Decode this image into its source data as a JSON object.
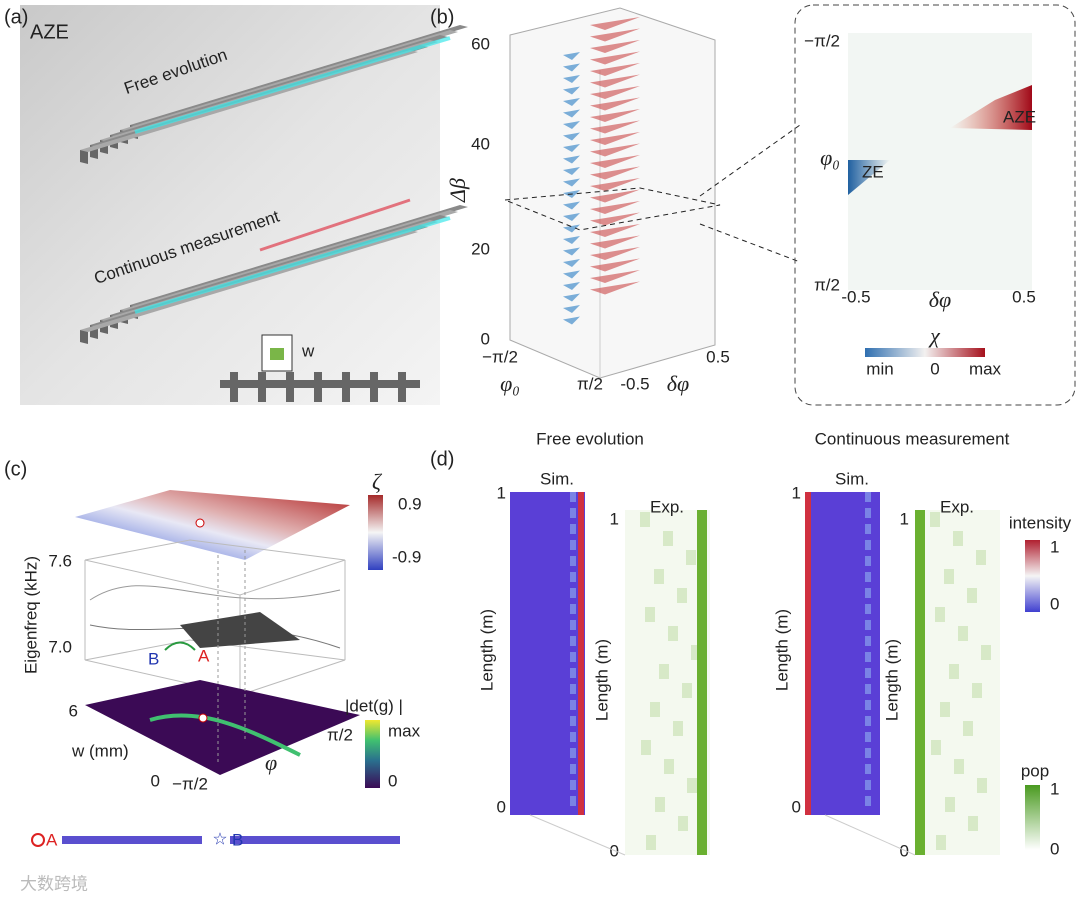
{
  "panel_a": {
    "label": "(a)",
    "title": "AZE",
    "beam1": "Free evolution",
    "beam2": "Continuous measurement",
    "inset": "w"
  },
  "panel_b": {
    "label": "(b)",
    "y_axis": {
      "label": "Δβ",
      "ticks": [
        "60",
        "40",
        "20",
        "0"
      ]
    },
    "phi_axis": {
      "label": "φ₀",
      "ticks": [
        "−π/2",
        "π/2"
      ]
    },
    "dphi_axis": {
      "label": "δφ",
      "ticks": [
        "-0.5",
        "0.5"
      ]
    },
    "zoom": {
      "y_label": "φ₀",
      "y_ticks": [
        "−π/2",
        "π/2"
      ],
      "x_label": "δφ",
      "x_ticks": [
        "-0.5",
        "0.5"
      ],
      "annotations": [
        "ZE",
        "AZE"
      ],
      "colorbar": {
        "label": "χ",
        "ticks": [
          "min",
          "0",
          "max"
        ]
      }
    }
  },
  "panel_c": {
    "label": "(c)",
    "zeta_bar": {
      "label": "ζ",
      "ticks": [
        "0.9",
        "-0.9"
      ]
    },
    "freq_axis": {
      "label": "Eigenfreq (kHz)",
      "ticks": [
        "7.6",
        "7.0"
      ]
    },
    "w_axis": {
      "label": "w (mm)",
      "ticks": [
        "6",
        "0"
      ]
    },
    "phi_axis": {
      "label": "φ",
      "ticks": [
        "−π/2",
        "π/2"
      ]
    },
    "det_bar": {
      "label": "|det(g)      |",
      "ticks": [
        "max",
        "0"
      ]
    },
    "points": [
      "A",
      "B"
    ],
    "modes": [
      "A",
      "B"
    ]
  },
  "panel_d": {
    "label": "(d)",
    "columns": [
      {
        "title": "Free evolution",
        "sim": {
          "label": "Sim.",
          "axis": "Length (m)",
          "ticks": [
            "1",
            "0"
          ]
        },
        "exp": {
          "label": "Exp.",
          "axis": "Length (m)",
          "ticks": [
            "1",
            "0"
          ]
        }
      },
      {
        "title": "Continuous measurement",
        "sim": {
          "label": "Sim.",
          "axis": "Length (m)",
          "ticks": [
            "1",
            "0"
          ]
        },
        "exp": {
          "label": "Exp.",
          "axis": "Length (m)",
          "ticks": [
            "1",
            "0"
          ]
        }
      }
    ],
    "intensity_bar": {
      "label": "intensity",
      "ticks": [
        "1",
        "0"
      ]
    },
    "pop_bar": {
      "label": "pop",
      "ticks": [
        "1",
        "0"
      ]
    }
  },
  "watermark": "大数跨境"
}
